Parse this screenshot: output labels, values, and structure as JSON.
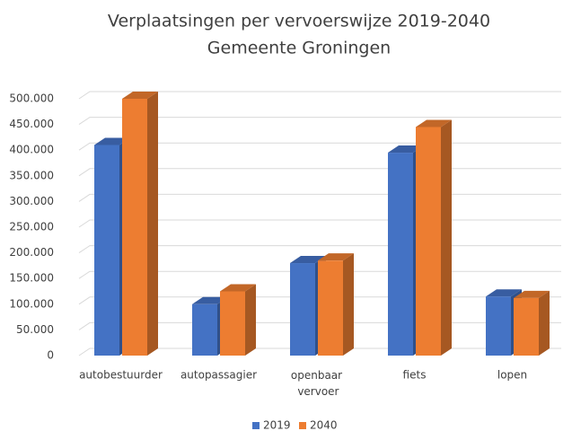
{
  "chart_data": {
    "type": "bar3d",
    "title": "Verplaatsingen per vervoerswijze  2019-2040",
    "subtitle": "Gemeente Groningen",
    "categories": [
      "autobestuurder",
      "autopassagier",
      "openbaar vervoer",
      "fiets",
      "lopen"
    ],
    "series": [
      {
        "name": "2019",
        "color": "#4472c4",
        "values": [
          410000,
          100000,
          180000,
          395000,
          115000
        ]
      },
      {
        "name": "2040",
        "color": "#ed7d31",
        "values": [
          500000,
          125000,
          185000,
          445000,
          112000
        ]
      }
    ],
    "ylim": [
      0,
      500000
    ],
    "yticks": [
      0,
      {
        "value": 50000,
        "label": "50.000"
      },
      {
        "value": 100000,
        "label": "100.000"
      },
      {
        "value": 150000,
        "label": "150.000"
      },
      {
        "value": 200000,
        "label": "200.000"
      },
      {
        "value": 250000,
        "label": "250.000"
      },
      {
        "value": 300000,
        "label": "300.000"
      },
      {
        "value": 350000,
        "label": "350.000"
      },
      {
        "value": 400000,
        "label": "400.000"
      },
      {
        "value": 450000,
        "label": "450.000"
      },
      {
        "value": 500000,
        "label": "500.000"
      }
    ],
    "grid": true,
    "legend": "bottom"
  }
}
